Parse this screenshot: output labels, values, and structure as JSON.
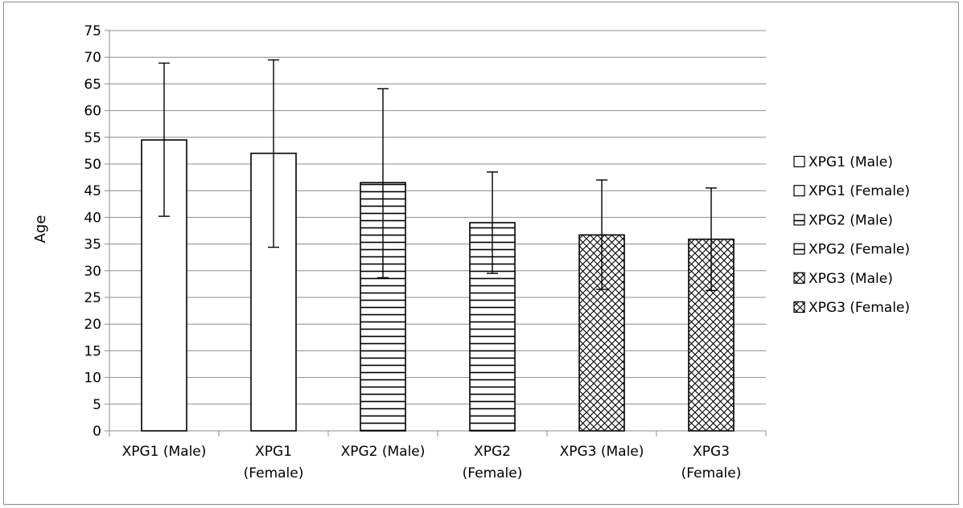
{
  "chart_data": {
    "type": "bar",
    "title": "",
    "xlabel": "",
    "ylabel": "Age",
    "ylim": [
      0,
      75
    ],
    "ytick_step": 5,
    "grid": true,
    "legend_position": "right",
    "categories": [
      "XPG1 (Male)",
      "XPG1 (Female)",
      "XPG2 (Male)",
      "XPG2 (Female)",
      "XPG3 (Male)",
      "XPG3 (Female)"
    ],
    "category_label_lines": [
      [
        "XPG1 (Male)"
      ],
      [
        "XPG1",
        "(Female)"
      ],
      [
        "XPG2 (Male)"
      ],
      [
        "XPG2",
        "(Female)"
      ],
      [
        "XPG3 (Male)"
      ],
      [
        "XPG3",
        "(Female)"
      ]
    ],
    "values": [
      54.5,
      52.0,
      46.5,
      39.0,
      36.7,
      35.9
    ],
    "error_low": [
      40.2,
      34.4,
      28.7,
      29.5,
      26.5,
      26.3
    ],
    "error_high": [
      68.9,
      69.5,
      64.1,
      48.5,
      47.0,
      45.5
    ],
    "patterns": [
      "none",
      "none",
      "horizontal-lines",
      "horizontal-lines",
      "crosshatch",
      "crosshatch"
    ],
    "legend": [
      {
        "label": "XPG1 (Male)",
        "pattern": "none"
      },
      {
        "label": "XPG1 (Female)",
        "pattern": "none"
      },
      {
        "label": "XPG2 (Male)",
        "pattern": "horizontal-lines"
      },
      {
        "label": "XPG2 (Female)",
        "pattern": "horizontal-lines"
      },
      {
        "label": "XPG3 (Male)",
        "pattern": "crosshatch"
      },
      {
        "label": "XPG3 (Female)",
        "pattern": "crosshatch"
      }
    ],
    "colors": {
      "bar_stroke": "#000000",
      "grid": "#8c8c8c",
      "background": "#ffffff"
    }
  }
}
